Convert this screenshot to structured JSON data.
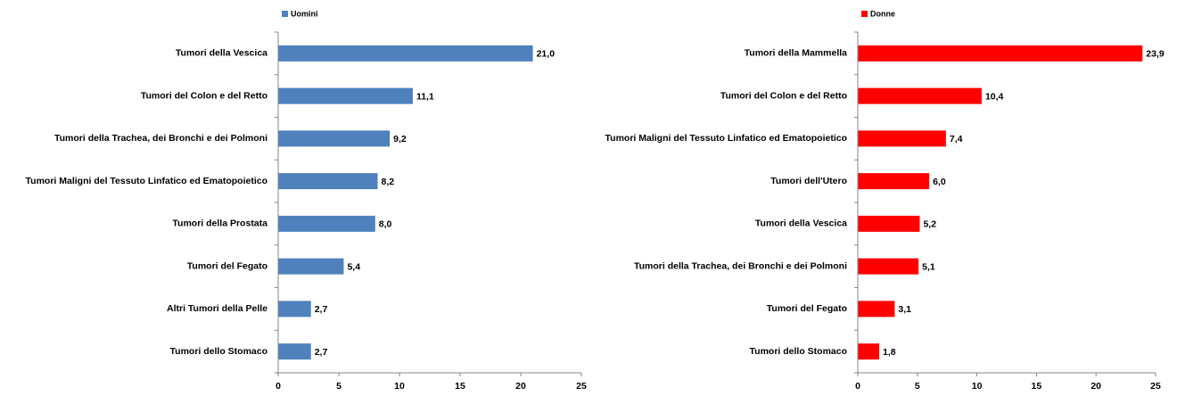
{
  "chart_data": [
    {
      "type": "bar",
      "orientation": "horizontal",
      "categories": [
        "Tumori della Vescica",
        "Tumori del Colon e del Retto",
        "Tumori della Trachea, dei Bronchi e dei Polmoni",
        "Tumori Maligni del Tessuto Linfatico ed Ematopoietico",
        "Tumori della Prostata",
        "Tumori del Fegato",
        "Altri Tumori della Pelle",
        "Tumori dello Stomaco"
      ],
      "series": [
        {
          "name": "Uomini",
          "color": "#4f81bd",
          "values": [
            21.0,
            11.1,
            9.2,
            8.2,
            8.0,
            5.4,
            2.7,
            2.7
          ],
          "value_labels": [
            "21,0",
            "11,1",
            "9,2",
            "8,2",
            "8,0",
            "5,4",
            "2,7",
            "2,7"
          ]
        }
      ],
      "xlim": [
        0,
        25
      ],
      "xticks": [
        0,
        5,
        10,
        15,
        20,
        25
      ],
      "legend": "top-left"
    },
    {
      "type": "bar",
      "orientation": "horizontal",
      "categories": [
        "Tumori della Mammella",
        "Tumori del Colon e del Retto",
        "Tumori Maligni del Tessuto Linfatico ed Ematopoietico",
        "Tumori dell'Utero",
        "Tumori della Vescica",
        "Tumori della Trachea, dei Bronchi e dei Polmoni",
        "Tumori del Fegato",
        "Tumori dello Stomaco"
      ],
      "series": [
        {
          "name": "Donne",
          "color": "#ff0000",
          "values": [
            23.9,
            10.4,
            7.4,
            6.0,
            5.2,
            5.1,
            3.1,
            1.8
          ],
          "value_labels": [
            "23,9",
            "10,4",
            "7,4",
            "6,0",
            "5,2",
            "5,1",
            "3,1",
            "1,8"
          ]
        }
      ],
      "xlim": [
        0,
        25
      ],
      "xticks": [
        0,
        5,
        10,
        15,
        20,
        25
      ],
      "legend": "top-left"
    }
  ]
}
